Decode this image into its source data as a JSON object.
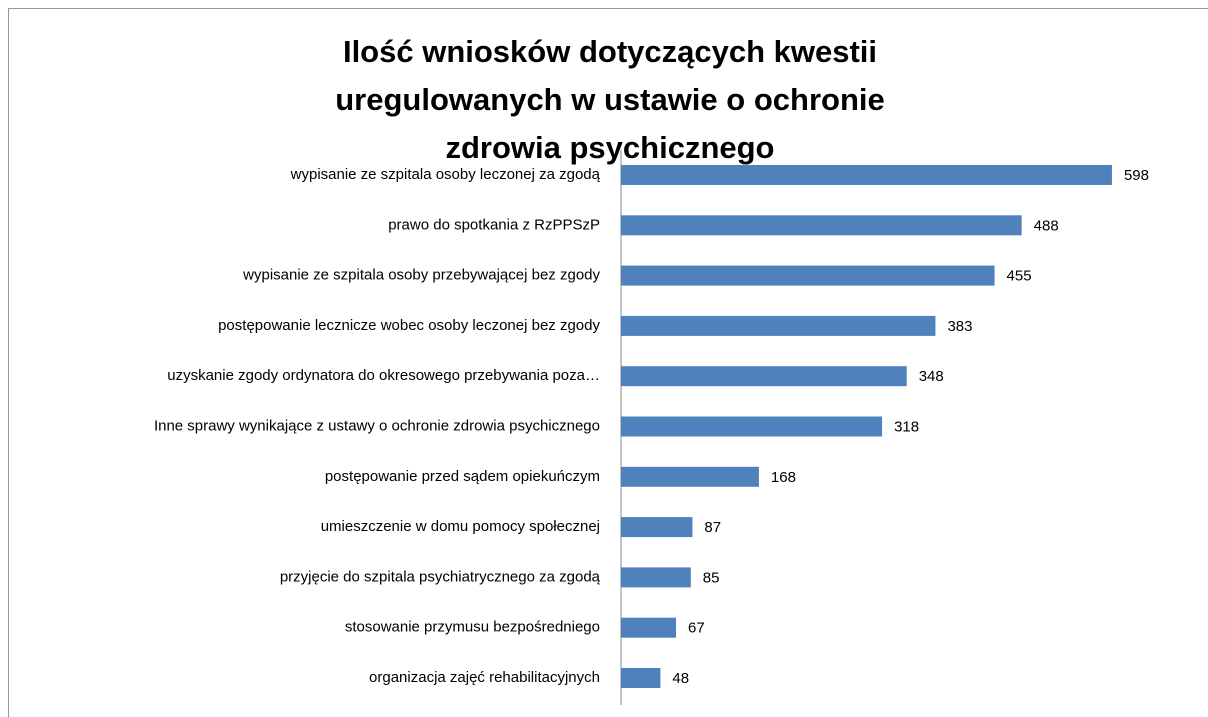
{
  "chart_data": {
    "type": "bar",
    "orientation": "horizontal",
    "title": "Ilość wniosków dotyczących kwestii uregulowanych w ustawie o ochronie zdrowia psychicznego",
    "categories": [
      "wypisanie ze szpitala osoby leczonej za zgodą",
      "prawo do spotkania z RzPPSzP",
      "wypisanie ze szpitala osoby przebywającej bez zgody",
      "postępowanie lecznicze wobec osoby leczonej bez zgody",
      "uzyskanie zgody ordynatora do okresowego przebywania poza…",
      "Inne sprawy wynikające z ustawy o ochronie zdrowia psychicznego",
      "postępowanie przed sądem opiekuńczym",
      "umieszczenie w domu pomocy społecznej",
      "przyjęcie do szpitala psychiatrycznego za zgodą",
      "stosowanie przymusu bezpośredniego",
      "organizacja zajęć rehabilitacyjnych"
    ],
    "values": [
      598,
      488,
      455,
      383,
      348,
      318,
      168,
      87,
      85,
      67,
      48
    ],
    "color": "#4f81bd"
  }
}
